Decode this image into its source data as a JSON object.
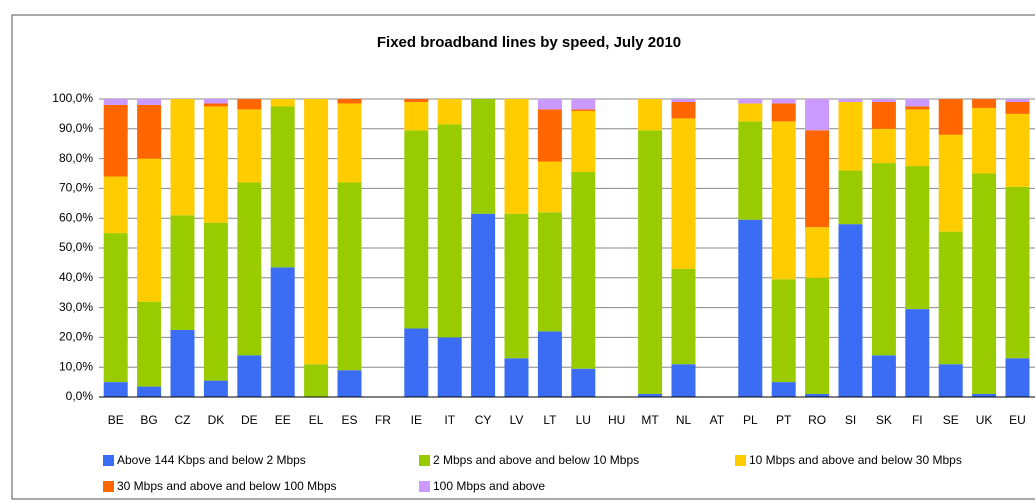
{
  "chart_data": {
    "type": "stacked_bar",
    "title": "Fixed broadband lines by speed, July 2010",
    "categories": [
      "BE",
      "BG",
      "CZ",
      "DK",
      "DE",
      "EE",
      "EL",
      "ES",
      "FR",
      "IE",
      "IT",
      "CY",
      "LV",
      "LT",
      "LU",
      "HU",
      "MT",
      "NL",
      "AT",
      "PL",
      "PT",
      "RO",
      "SI",
      "SK",
      "FI",
      "SE",
      "UK",
      "EU"
    ],
    "series": [
      {
        "name": "Above 144 Kbps and below 2 Mbps",
        "color": "#3a6cf4",
        "values": [
          5,
          3.5,
          22.5,
          5.5,
          14,
          43.5,
          0,
          9,
          null,
          23,
          20,
          61.5,
          13,
          22,
          9.5,
          null,
          1,
          11,
          null,
          59.5,
          5,
          1,
          58,
          14,
          29.5,
          11,
          1,
          13
        ]
      },
      {
        "name": "2 Mbps and above and below 10 Mbps",
        "color": "#99cc00",
        "values": [
          50,
          28.5,
          38.5,
          53,
          58,
          54,
          11,
          63,
          null,
          66.5,
          71.5,
          38.5,
          48.5,
          40,
          66,
          null,
          88.5,
          32,
          null,
          33,
          34.5,
          39,
          18,
          64.5,
          48,
          44.5,
          74,
          57.5
        ]
      },
      {
        "name": "10 Mbps and above and below 30 Mbps",
        "color": "#ffcc00",
        "values": [
          19,
          48,
          39,
          39,
          24.5,
          2.5,
          89,
          26.5,
          null,
          9.5,
          8.5,
          0,
          38.5,
          17,
          20.5,
          null,
          10.5,
          50.5,
          null,
          6,
          53,
          17,
          23,
          11.5,
          19,
          32.5,
          22,
          24.5
        ]
      },
      {
        "name": "30 Mbps and above and below 100 Mbps",
        "color": "#ff6600",
        "values": [
          24,
          18,
          0,
          1,
          3.5,
          0,
          0,
          1.5,
          null,
          1,
          0,
          0,
          0,
          17.5,
          0.5,
          null,
          0,
          5.5,
          null,
          0,
          6,
          32.5,
          0,
          9,
          1,
          12,
          3,
          4
        ]
      },
      {
        "name": "100 Mbps and above",
        "color": "#cc99ff",
        "values": [
          2,
          2,
          0,
          1.5,
          0,
          0,
          0,
          0,
          null,
          0,
          0,
          0,
          0,
          3.5,
          3.5,
          null,
          0,
          1,
          null,
          1.5,
          1.5,
          10.5,
          1,
          1,
          2.5,
          0,
          0,
          1
        ]
      }
    ],
    "ylim": [
      0,
      100
    ],
    "yticks": [
      {
        "value": 0,
        "label": "0,0%"
      },
      {
        "value": 10,
        "label": "10,0%"
      },
      {
        "value": 20,
        "label": "20,0%"
      },
      {
        "value": 30,
        "label": "30,0%"
      },
      {
        "value": 40,
        "label": "40,0%"
      },
      {
        "value": 50,
        "label": "50,0%"
      },
      {
        "value": 60,
        "label": "60,0%"
      },
      {
        "value": 70,
        "label": "70,0%"
      },
      {
        "value": 80,
        "label": "80,0%"
      },
      {
        "value": 90,
        "label": "90,0%"
      },
      {
        "value": 100,
        "label": "100,0%"
      }
    ],
    "grid": true,
    "legend": "bottom"
  }
}
